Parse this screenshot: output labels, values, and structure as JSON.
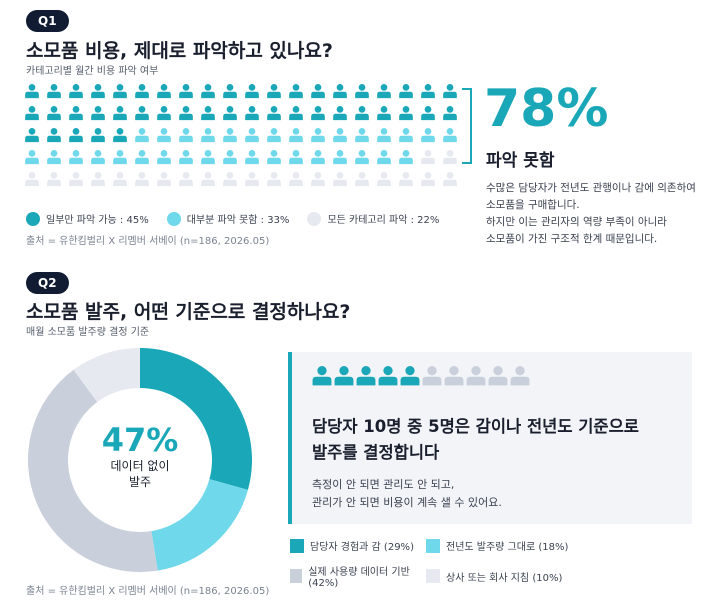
{
  "q1": {
    "badge": "Q1",
    "title": "소모품 비용, 제대로 파악하고 있나요?",
    "subtitle": "카테고리별 월간 비용 파악 여부",
    "big_pct": "78%",
    "big_label": "파악 못함",
    "desc_lines": [
      "수많은 담당자가 전년도 관행이나 감에 의존하여",
      "소모품을 구매합니다.",
      "하지만 이는 관리자의 역량 부족이 아니라",
      "소모품이 가진 구조적 한계 때문입니다."
    ],
    "legend": [
      {
        "label": "일부만 파악 가능 : 45%",
        "color": "#1aa7b8"
      },
      {
        "label": "대부분 파악 못함 : 33%",
        "color": "#6fd8ea"
      },
      {
        "label": "모든 카테고리 파악 : 22%",
        "color": "#e6e9ef"
      }
    ],
    "source": "출처 = 유한킴벌리 X 리멤버 서베이 (n=186, 2026.05)"
  },
  "q2": {
    "badge": "Q2",
    "title": "소모품 발주, 어떤 기준으로 결정하나요?",
    "subtitle": "매월 소모품 발주량 결정 기준",
    "center_pct": "47%",
    "center_label_1": "데이터 없이",
    "center_label_2": "발주",
    "panel_title_1": "담당자 10명 중 5명은 감이나 전년도 기준으로",
    "panel_title_2": "발주를 결정합니다",
    "panel_desc_1": "측정이 안 되면 관리도 안 되고,",
    "panel_desc_2": "관리가 안 되면 비용이 계속 샐 수 있어요.",
    "people": {
      "total": 10,
      "highlighted": 5,
      "on_color": "#1aa7b8",
      "off_color": "#c9d0db"
    },
    "legend": [
      {
        "label": "담당자 경험과 감 (29%)",
        "color": "#1aa7b8"
      },
      {
        "label": "전년도 발주량 그대로 (18%)",
        "color": "#6fd8ea"
      },
      {
        "label": "실제 사용량 데이터 기반 (42%)",
        "color": "#c9d0db"
      },
      {
        "label": "상사 또는 회사 지침 (10%)",
        "color": "#e6e9ef"
      }
    ],
    "source": "출처 = 유한킴벌리 X 리멤버 서베이 (n=186, 2026.05)"
  },
  "chart_data": [
    {
      "type": "bar",
      "categories": [
        "일부만 파악 가능",
        "대부분 파악 못함",
        "모든 카테고리 파악"
      ],
      "values": [
        45,
        33,
        22
      ],
      "colors": [
        "#1aa7b8",
        "#6fd8ea",
        "#e6e9ef"
      ],
      "ylabel": "",
      "title": "소모품 비용, 제대로 파악하고 있나요?"
    },
    {
      "type": "pie",
      "categories": [
        "담당자 경험과 감",
        "전년도 발주량 그대로",
        "실제 사용량 데이터 기반",
        "상사 또는 회사 지침"
      ],
      "values": [
        29,
        18,
        42,
        10
      ],
      "colors": [
        "#1aa7b8",
        "#6fd8ea",
        "#c9d0db",
        "#e6e9ef"
      ],
      "title": "소모품 발주, 어떤 기준으로 결정하나요?"
    }
  ]
}
